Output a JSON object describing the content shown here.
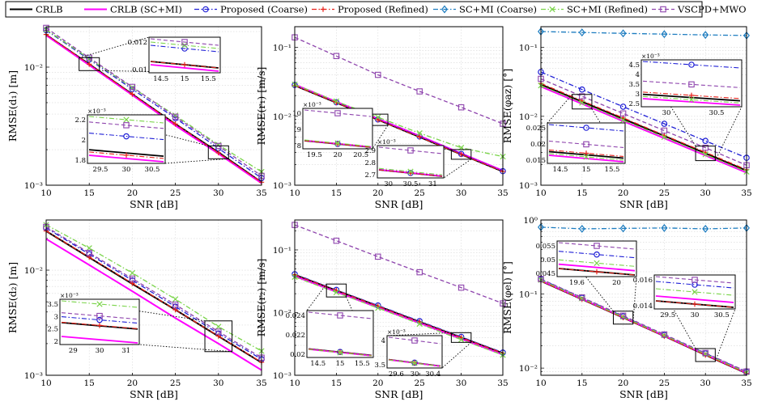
{
  "chart_data": {
    "type": "line",
    "legend": {
      "placement": "top",
      "entries": [
        {
          "name": "CRLB",
          "color": "#000000",
          "dash": "solid",
          "marker": "none"
        },
        {
          "name": "CRLB (SC+MI)",
          "color": "#ff00ff",
          "dash": "solid",
          "marker": "none"
        },
        {
          "name": "Proposed (Coarse)",
          "color": "#1f1fd6",
          "dash": "dashdot",
          "marker": "circle"
        },
        {
          "name": "Proposed (Refined)",
          "color": "#e8221b",
          "dash": "dashdot",
          "marker": "plus"
        },
        {
          "name": "SC+MI (Coarse)",
          "color": "#1c7cc0",
          "dash": "dashdot",
          "marker": "diamond"
        },
        {
          "name": "SC+MI (Refined)",
          "color": "#7ad44a",
          "dash": "dashdot",
          "marker": "x"
        },
        {
          "name": "VSCPD+MWO",
          "color": "#8e44ad",
          "dash": "dashed",
          "marker": "square"
        }
      ]
    },
    "panels": [
      {
        "id": "d1",
        "ylabel": "RMSE(d₁) [m]",
        "xlabel": "SNR [dB]",
        "scale": "log",
        "xlim": [
          10,
          35
        ],
        "ylim": [
          0.001,
          0.022
        ],
        "xticks": [
          "10",
          "15",
          "20",
          "25",
          "30",
          "35"
        ],
        "yticks": [
          {
            "v": 0.001,
            "label": "10⁻³"
          },
          {
            "v": 0.01,
            "label": "10⁻²"
          }
        ],
        "x": [
          10,
          15,
          20,
          25,
          30,
          35
        ],
        "series": [
          {
            "name": "CRLB",
            "values": [
              0.0188,
              0.0106,
              0.0059,
              0.0033,
              0.0019,
              0.00106
            ]
          },
          {
            "name": "CRLB (SC+MI)",
            "values": [
              0.0186,
              0.0104,
              0.0058,
              0.0032,
              0.00185,
              0.00104
            ]
          },
          {
            "name": "Proposed (Coarse)",
            "values": [
              0.0205,
              0.0116,
              0.0065,
              0.0037,
              0.00205,
              0.00115
            ]
          },
          {
            "name": "Proposed (Refined)",
            "values": [
              0.0189,
              0.0106,
              0.0059,
              0.0033,
              0.00188,
              0.00106
            ]
          },
          {
            "name": "SC+MI (Refined)",
            "values": [
              0.0208,
              0.0118,
              0.0067,
              0.0039,
              0.0022,
              0.0013
            ]
          },
          {
            "name": "VSCPD+MWO",
            "values": [
              0.0215,
              0.012,
              0.0068,
              0.0038,
              0.00215,
              0.0012
            ]
          }
        ],
        "insets": [
          {
            "xticks": [
              "14.5",
              "15",
              "15.5"
            ],
            "yticks": [
              "0.012",
              "0.01"
            ]
          },
          {
            "xticks": [
              "29.5",
              "30",
              "30.5"
            ],
            "yticks": [
              "2.2",
              "2",
              "1.8"
            ],
            "exponent": "×10⁻³"
          }
        ]
      },
      {
        "id": "r1",
        "ylabel": "RMSE(r₁) [m/s]",
        "xlabel": "SNR [dB]",
        "scale": "log",
        "xlim": [
          10,
          35
        ],
        "ylim": [
          0.001,
          0.2
        ],
        "xticks": [
          "10",
          "15",
          "20",
          "25",
          "30",
          "35"
        ],
        "yticks": [
          {
            "v": 0.001,
            "label": "10⁻³"
          },
          {
            "v": 0.01,
            "label": "10⁻²"
          },
          {
            "v": 0.1,
            "label": "10⁻¹"
          }
        ],
        "x": [
          10,
          15,
          20,
          25,
          30,
          35
        ],
        "series": [
          {
            "name": "CRLB",
            "values": [
              0.028,
              0.0158,
              0.0089,
              0.005,
              0.0028,
              0.00158
            ]
          },
          {
            "name": "CRLB (SC+MI)",
            "values": [
              0.029,
              0.0163,
              0.0092,
              0.0052,
              0.0029,
              0.00163
            ]
          },
          {
            "name": "Proposed (Coarse)",
            "values": [
              0.0285,
              0.016,
              0.009,
              0.0051,
              0.00285,
              0.0016
            ]
          },
          {
            "name": "Proposed (Refined)",
            "values": [
              0.028,
              0.0158,
              0.0089,
              0.005,
              0.0028,
              0.00158
            ]
          },
          {
            "name": "SC+MI (Refined)",
            "values": [
              0.029,
              0.0165,
              0.0097,
              0.0057,
              0.0035,
              0.0026
            ]
          },
          {
            "name": "VSCPD+MWO",
            "values": [
              0.14,
              0.075,
              0.04,
              0.023,
              0.0135,
              0.0078
            ]
          }
        ],
        "insets": [
          {
            "xticks": [
              "19.5",
              "20",
              "20.5"
            ],
            "yticks": [
              "10",
              "9",
              "8"
            ],
            "exponent": "×10⁻³"
          },
          {
            "xticks": [
              "30",
              "30.5",
              "31"
            ],
            "yticks": [
              "2.9",
              "2.8",
              "2.7"
            ],
            "exponent": "×10⁻³"
          }
        ]
      },
      {
        "id": "phi_az",
        "ylabel": "RMSE(φaz) [°]",
        "xlabel": "SNR [dB]",
        "scale": "log",
        "xlim": [
          10,
          35
        ],
        "ylim": [
          0.001,
          0.2
        ],
        "xticks": [
          "10",
          "15",
          "20",
          "25",
          "30",
          "35"
        ],
        "yticks": [
          {
            "v": 0.001,
            "label": "10⁻³"
          },
          {
            "v": 0.01,
            "label": "10⁻²"
          },
          {
            "v": 0.1,
            "label": "10⁻¹"
          }
        ],
        "x": [
          10,
          15,
          20,
          25,
          30,
          35
        ],
        "series": [
          {
            "name": "CRLB",
            "values": [
              0.029,
              0.0163,
              0.0092,
              0.0052,
              0.0029,
              0.00163
            ]
          },
          {
            "name": "CRLB (SC+MI)",
            "values": [
              0.027,
              0.0152,
              0.0085,
              0.0048,
              0.0027,
              0.00152
            ]
          },
          {
            "name": "Proposed (Coarse)",
            "values": [
              0.044,
              0.0245,
              0.0138,
              0.0078,
              0.0044,
              0.0025
            ]
          },
          {
            "name": "Proposed (Refined)",
            "values": [
              0.03,
              0.0168,
              0.0095,
              0.0053,
              0.003,
              0.00168
            ]
          },
          {
            "name": "SC+MI (Coarse)",
            "values": [
              0.17,
              0.165,
              0.16,
              0.156,
              0.152,
              0.149
            ]
          },
          {
            "name": "SC+MI (Refined)",
            "values": [
              0.028,
              0.0157,
              0.0088,
              0.005,
              0.0028,
              0.00157
            ]
          },
          {
            "name": "VSCPD+MWO",
            "values": [
              0.035,
              0.0195,
              0.011,
              0.0062,
              0.0035,
              0.00195
            ]
          }
        ],
        "insets": [
          {
            "xticks": [
              "30",
              "30.5"
            ],
            "yticks": [
              "4.5",
              "4",
              "3.5",
              "3",
              "2.5"
            ],
            "exponent": "×10⁻³"
          },
          {
            "xticks": [
              "14.5",
              "15",
              "15.5"
            ],
            "yticks": [
              "0.025",
              "0.02",
              "0.015"
            ]
          }
        ]
      },
      {
        "id": "d2",
        "ylabel": "RMSE(d₂) [m]",
        "xlabel": "SNR [dB]",
        "scale": "log",
        "xlim": [
          10,
          35
        ],
        "ylim": [
          0.001,
          0.03
        ],
        "xticks": [
          "10",
          "15",
          "20",
          "25",
          "30",
          "35"
        ],
        "yticks": [
          {
            "v": 0.001,
            "label": "10⁻³"
          },
          {
            "v": 0.01,
            "label": "10⁻²"
          }
        ],
        "x": [
          10,
          15,
          20,
          25,
          30,
          35
        ],
        "series": [
          {
            "name": "CRLB",
            "values": [
              0.0235,
              0.0132,
              0.0074,
              0.0042,
              0.00235,
              0.00132
            ]
          },
          {
            "name": "CRLB (SC+MI)",
            "values": [
              0.0198,
              0.0112,
              0.0063,
              0.0035,
              0.002,
              0.00112
            ]
          },
          {
            "name": "Proposed (Coarse)",
            "values": [
              0.0252,
              0.0142,
              0.008,
              0.0045,
              0.0025,
              0.00142
            ]
          },
          {
            "name": "Proposed (Refined)",
            "values": [
              0.0236,
              0.0133,
              0.0075,
              0.0042,
              0.00236,
              0.00133
            ]
          },
          {
            "name": "SC+MI (Refined)",
            "values": [
              0.027,
              0.0162,
              0.0094,
              0.0053,
              0.0029,
              0.0017
            ]
          },
          {
            "name": "VSCPD+MWO",
            "values": [
              0.0258,
              0.0146,
              0.0083,
              0.0047,
              0.0026,
              0.00147
            ]
          }
        ],
        "insets": [
          {
            "xticks": [
              "29",
              "30",
              "31"
            ],
            "yticks": [
              "3.5",
              "3",
              "2.5",
              "2"
            ],
            "exponent": "×10⁻³"
          }
        ]
      },
      {
        "id": "r2",
        "ylabel": "RMSE(r₂) [m/s]",
        "xlabel": "SNR [dB]",
        "scale": "log",
        "xlim": [
          10,
          35
        ],
        "ylim": [
          0.001,
          0.3
        ],
        "xticks": [
          "10",
          "15",
          "20",
          "25",
          "30",
          "35"
        ],
        "yticks": [
          {
            "v": 0.001,
            "label": "10⁻³"
          },
          {
            "v": 0.01,
            "label": "10⁻²"
          },
          {
            "v": 0.1,
            "label": "10⁻¹"
          }
        ],
        "x": [
          10,
          15,
          20,
          25,
          30,
          35
        ],
        "series": [
          {
            "name": "CRLB",
            "values": [
              0.04,
              0.0225,
              0.0127,
              0.0071,
              0.004,
              0.00225
            ]
          },
          {
            "name": "CRLB (SC+MI)",
            "values": [
              0.038,
              0.0214,
              0.012,
              0.0068,
              0.0038,
              0.00214
            ]
          },
          {
            "name": "Proposed (Coarse)",
            "values": [
              0.041,
              0.023,
              0.013,
              0.0073,
              0.0041,
              0.0023
            ]
          },
          {
            "name": "Proposed (Refined)",
            "values": [
              0.0402,
              0.0226,
              0.0127,
              0.0071,
              0.004,
              0.00226
            ]
          },
          {
            "name": "SC+MI (Refined)",
            "values": [
              0.037,
              0.021,
              0.0118,
              0.0066,
              0.0037,
              0.0021
            ]
          },
          {
            "name": "VSCPD+MWO",
            "values": [
              0.25,
              0.14,
              0.078,
              0.044,
              0.025,
              0.014
            ]
          }
        ],
        "insets": [
          {
            "xticks": [
              "14.5",
              "15",
              "15.5"
            ],
            "yticks": [
              "0.024",
              "0.022",
              "0.02"
            ]
          },
          {
            "xticks": [
              "29.6",
              "30",
              "30.4"
            ],
            "yticks": [
              "4",
              "3.5"
            ],
            "exponent": "×10⁻³"
          }
        ]
      },
      {
        "id": "phi_el",
        "ylabel": "RMSE(φel) [°]",
        "xlabel": "SNR [dB]",
        "scale": "log",
        "xlim": [
          10,
          35
        ],
        "ylim": [
          0.008,
          1.0
        ],
        "xticks": [
          "10",
          "15",
          "20",
          "25",
          "30",
          "35"
        ],
        "yticks": [
          {
            "v": 0.01,
            "label": "10⁻²"
          },
          {
            "v": 0.1,
            "label": "10⁻¹"
          },
          {
            "v": 1.0,
            "label": "10⁰"
          }
        ],
        "x": [
          10,
          15,
          20,
          25,
          30,
          35
        ],
        "series": [
          {
            "name": "CRLB",
            "values": [
              0.15,
              0.085,
              0.048,
              0.027,
              0.015,
              0.0085
            ]
          },
          {
            "name": "CRLB (SC+MI)",
            "values": [
              0.152,
              0.086,
              0.0485,
              0.0273,
              0.0152,
              0.0086
            ]
          },
          {
            "name": "Proposed (Coarse)",
            "values": [
              0.158,
              0.089,
              0.05,
              0.028,
              0.0158,
              0.0089
            ]
          },
          {
            "name": "Proposed (Refined)",
            "values": [
              0.15,
              0.085,
              0.048,
              0.027,
              0.015,
              0.0085
            ]
          },
          {
            "name": "SC+MI (Coarse)",
            "values": [
              0.8,
              0.76,
              0.77,
              0.78,
              0.76,
              0.78
            ]
          },
          {
            "name": "SC+MI (Refined)",
            "values": [
              0.155,
              0.087,
              0.049,
              0.0277,
              0.0155,
              0.0087
            ]
          },
          {
            "name": "VSCPD+MWO",
            "values": [
              0.16,
              0.09,
              0.051,
              0.0285,
              0.016,
              0.009
            ]
          }
        ],
        "insets": [
          {
            "xticks": [
              "19.6",
              "20"
            ],
            "yticks": [
              "0.055",
              "0.05",
              "0.045"
            ]
          },
          {
            "xticks": [
              "29.5",
              "30",
              "30.5"
            ],
            "yticks": [
              "0.016",
              "0.014"
            ]
          }
        ]
      }
    ]
  }
}
